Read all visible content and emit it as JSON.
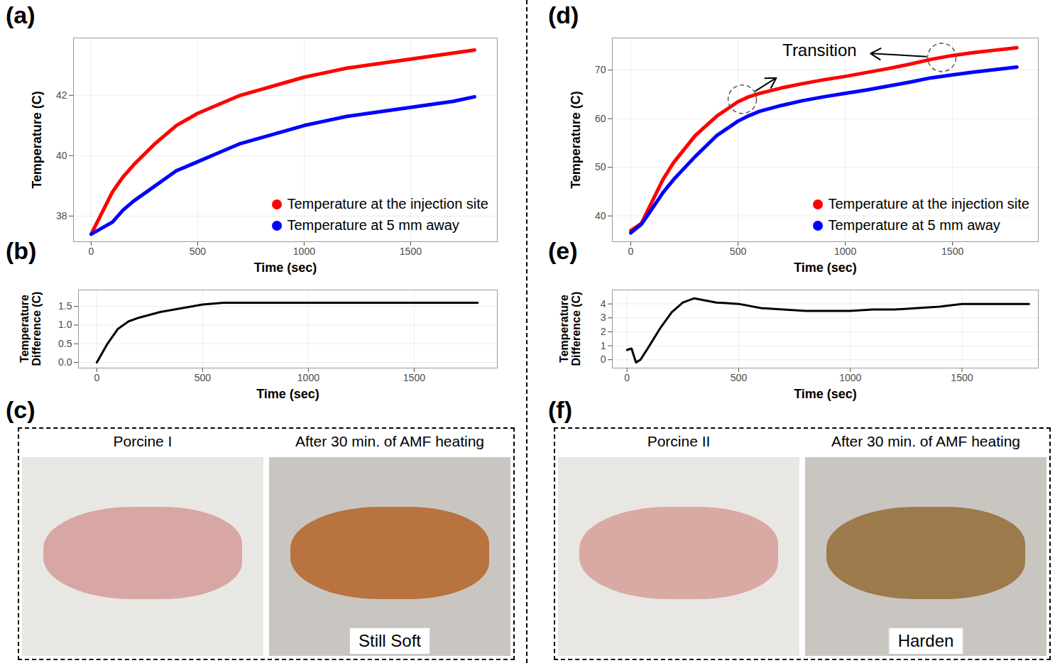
{
  "chart_data": [
    {
      "panel": "(a)",
      "type": "line",
      "x_label": "Time (sec)",
      "y_label": "Temperature (C)",
      "xlim": [
        -83,
        1907
      ],
      "xticks": [
        0,
        500,
        1000,
        1500
      ],
      "ylim": [
        37.15,
        43.9
      ],
      "yticks": [
        38,
        40,
        42
      ],
      "grid": true,
      "legend": "bottom-right",
      "x": [
        0,
        50,
        100,
        150,
        200,
        300,
        400,
        500,
        600,
        700,
        800,
        900,
        1000,
        1100,
        1200,
        1300,
        1400,
        1500,
        1600,
        1700,
        1800
      ],
      "series": [
        {
          "name": "Temperature at the injection site",
          "color": "#ff0000",
          "values": [
            37.4,
            38.1,
            38.8,
            39.3,
            39.7,
            40.4,
            41.0,
            41.4,
            41.7,
            42.0,
            42.2,
            42.4,
            42.6,
            42.75,
            42.9,
            43.0,
            43.1,
            43.2,
            43.3,
            43.4,
            43.5
          ]
        },
        {
          "name": "Temperature at 5 mm away",
          "color": "#0000ff",
          "values": [
            37.4,
            37.6,
            37.8,
            38.2,
            38.5,
            39.0,
            39.5,
            39.8,
            40.1,
            40.4,
            40.6,
            40.8,
            41.0,
            41.15,
            41.3,
            41.4,
            41.5,
            41.6,
            41.7,
            41.8,
            41.95
          ]
        }
      ]
    },
    {
      "panel": "(b)",
      "type": "line",
      "x_label": "Time (sec)",
      "y_label": "Temperature Difference (C)",
      "xlim": [
        -87,
        1893
      ],
      "xticks": [
        0,
        500,
        1000,
        1500
      ],
      "ylim": [
        -0.15,
        1.94
      ],
      "yticks": [
        {
          "value": 0,
          "label": "0.0"
        },
        0.5,
        {
          "value": 1,
          "label": "1.0"
        },
        1.5
      ],
      "grid": true,
      "x": [
        0,
        50,
        100,
        150,
        200,
        300,
        400,
        500,
        600,
        700,
        800,
        900,
        1000,
        1100,
        1200,
        1300,
        1400,
        1500,
        1600,
        1700,
        1800
      ],
      "series": [
        {
          "color": "#000000",
          "values": [
            0,
            0.5,
            0.9,
            1.1,
            1.2,
            1.35,
            1.45,
            1.55,
            1.6,
            1.6,
            1.6,
            1.6,
            1.6,
            1.6,
            1.6,
            1.6,
            1.6,
            1.6,
            1.6,
            1.6,
            1.6
          ]
        }
      ]
    },
    {
      "panel": "(d)",
      "type": "line",
      "x_label": "Time (sec)",
      "y_label": "Temperature (C)",
      "xlim": [
        -86,
        1900
      ],
      "xticks": [
        0,
        500,
        1000,
        1500
      ],
      "ylim": [
        34.7,
        76.6
      ],
      "yticks": [
        40,
        50,
        60,
        70
      ],
      "grid": true,
      "legend": "bottom-right",
      "x": [
        0,
        50,
        100,
        150,
        200,
        300,
        400,
        500,
        550,
        600,
        700,
        800,
        900,
        1000,
        1100,
        1200,
        1300,
        1400,
        1500,
        1600,
        1700,
        1800
      ],
      "series": [
        {
          "name": "Temperature at the injection site",
          "color": "#ff0000",
          "values": [
            37,
            38.5,
            43,
            47.5,
            51,
            56.5,
            60.5,
            63.5,
            64.5,
            65.2,
            66.3,
            67.2,
            68,
            68.7,
            69.5,
            70.3,
            71.2,
            72.2,
            73,
            73.6,
            74.1,
            74.6
          ]
        },
        {
          "name": "Temperature at 5 mm away",
          "color": "#0000ff",
          "values": [
            36.5,
            38.3,
            41.5,
            44.8,
            47.5,
            52.2,
            56.5,
            59.5,
            60.6,
            61.5,
            62.7,
            63.7,
            64.5,
            65.2,
            65.9,
            66.7,
            67.5,
            68.4,
            69,
            69.6,
            70.1,
            70.6
          ]
        }
      ],
      "annotations": [
        {
          "text": "Transition",
          "x": 880,
          "y": 74.0,
          "targets": [
            {
              "x": 520,
              "y": 64
            },
            {
              "x": 1450,
              "y": 72.6
            }
          ]
        }
      ]
    },
    {
      "panel": "(e)",
      "type": "line",
      "x_label": "Time (sec)",
      "y_label": "Temperature Difference (C)",
      "xlim": [
        -66,
        1842
      ],
      "xticks": [
        0,
        500,
        1000,
        1500
      ],
      "ylim": [
        -0.6,
        5.0
      ],
      "yticks": [
        0,
        1,
        2,
        3,
        4
      ],
      "grid": true,
      "x": [
        0,
        20,
        40,
        60,
        100,
        150,
        200,
        250,
        300,
        400,
        500,
        600,
        700,
        800,
        900,
        1000,
        1100,
        1200,
        1300,
        1400,
        1500,
        1600,
        1700,
        1800
      ],
      "series": [
        {
          "color": "#000000",
          "values": [
            0.7,
            0.8,
            -0.2,
            0,
            1.0,
            2.3,
            3.4,
            4.1,
            4.4,
            4.1,
            4.0,
            3.7,
            3.6,
            3.5,
            3.5,
            3.5,
            3.6,
            3.6,
            3.7,
            3.8,
            4.0,
            4.0,
            4.0,
            4.0
          ]
        }
      ]
    }
  ],
  "photo_panels": [
    {
      "panel": "(c)",
      "photos": [
        {
          "title": "Porcine I"
        },
        {
          "title": "After 30 min. of AMF heating",
          "label": "Still Soft"
        }
      ]
    },
    {
      "panel": "(f)",
      "photos": [
        {
          "title": "Porcine II"
        },
        {
          "title": "After 30 min. of AMF heating",
          "label": "Harden"
        }
      ]
    }
  ]
}
